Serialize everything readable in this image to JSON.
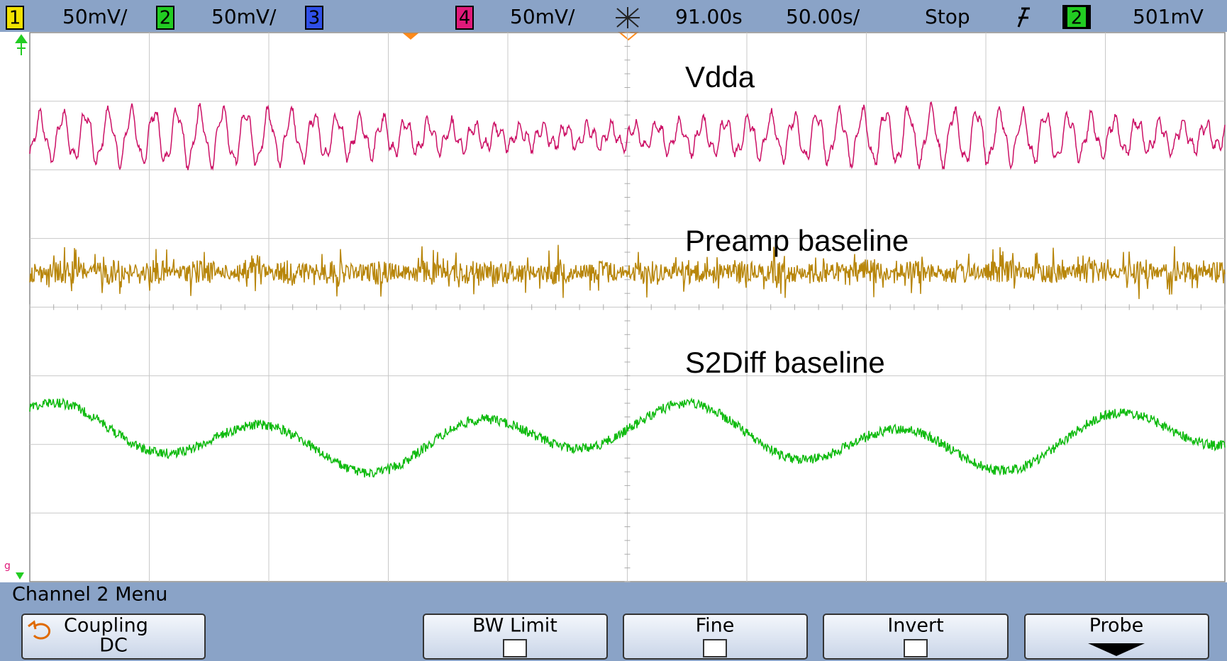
{
  "status_bar": {
    "channels": [
      {
        "number": "1",
        "scale": "50mV/"
      },
      {
        "number": "2",
        "scale": "50mV/"
      },
      {
        "number": "3"
      },
      {
        "number": "4",
        "scale": "50mV/"
      }
    ],
    "delay": "91.00s",
    "timebase": "50.00s/",
    "run_state": "Stop",
    "trigger_source": "2",
    "trigger_level": "501mV"
  },
  "traces": [
    {
      "label": "Vdda"
    },
    {
      "label": "Preamp baseline"
    },
    {
      "label": "S2Diff baseline"
    }
  ],
  "menu": {
    "title": "Channel 2  Menu",
    "buttons": [
      {
        "label": "Coupling",
        "value": "DC"
      },
      {
        "label": "BW Limit"
      },
      {
        "label": "Fine"
      },
      {
        "label": "Invert"
      },
      {
        "label": "Probe"
      }
    ]
  }
}
